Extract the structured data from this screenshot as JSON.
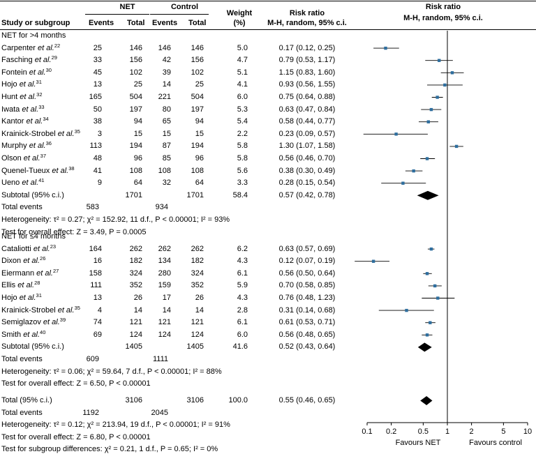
{
  "header": {
    "study": "Study or subgroup",
    "net": "NET",
    "control": "Control",
    "events": "Events",
    "total": "Total",
    "weight": "Weight",
    "weight_unit": "(%)",
    "rr_title": "Risk ratio",
    "rr_sub": "M-H, random, 95% c.i.",
    "plot_title": "Risk ratio",
    "plot_sub": "M-H, random, 95% c.i."
  },
  "groups": [
    {
      "title": "NET for >4 months",
      "studies": [
        {
          "name": "Carpenter",
          "ref": "22",
          "ne": "25",
          "nt": "146",
          "ce": "146",
          "ct": "146",
          "w": "5.0",
          "rr": "0.17 (0.12, 0.25)"
        },
        {
          "name": "Fasching",
          "ref": "29",
          "ne": "33",
          "nt": "156",
          "ce": "42",
          "ct": "156",
          "w": "4.7",
          "rr": "0.79 (0.53, 1.17)"
        },
        {
          "name": "Fontein",
          "ref": "30",
          "ne": "45",
          "nt": "102",
          "ce": "39",
          "ct": "102",
          "w": "5.1",
          "rr": "1.15 (0.83, 1.60)"
        },
        {
          "name": "Hojo",
          "ref": "31",
          "ne": "13",
          "nt": "25",
          "ce": "14",
          "ct": "25",
          "w": "4.1",
          "rr": "0.93 (0.56, 1.55)"
        },
        {
          "name": "Hunt",
          "ref": "32",
          "ne": "165",
          "nt": "504",
          "ce": "221",
          "ct": "504",
          "w": "6.0",
          "rr": "0.75 (0.64, 0.88)"
        },
        {
          "name": "Iwata",
          "ref": "33",
          "ne": "50",
          "nt": "197",
          "ce": "80",
          "ct": "197",
          "w": "5.3",
          "rr": "0.63 (0.47, 0.84)"
        },
        {
          "name": "Kantor",
          "ref": "34",
          "ne": "38",
          "nt": "94",
          "ce": "65",
          "ct": "94",
          "w": "5.4",
          "rr": "0.58 (0.44, 0.77)"
        },
        {
          "name": "Krainick-Strobel",
          "ref": "35",
          "ne": "3",
          "nt": "15",
          "ce": "15",
          "ct": "15",
          "w": "2.2",
          "rr": "0.23 (0.09, 0.57)"
        },
        {
          "name": "Murphy",
          "ref": "36",
          "ne": "113",
          "nt": "194",
          "ce": "87",
          "ct": "194",
          "w": "5.8",
          "rr": "1.30 (1.07, 1.58)"
        },
        {
          "name": "Olson",
          "ref": "37",
          "ne": "48",
          "nt": "96",
          "ce": "85",
          "ct": "96",
          "w": "5.8",
          "rr": "0.56 (0.46, 0.70)"
        },
        {
          "name": "Quenel-Tueux",
          "ref": "38",
          "ne": "41",
          "nt": "108",
          "ce": "108",
          "ct": "108",
          "w": "5.6",
          "rr": "0.38 (0.30, 0.49)"
        },
        {
          "name": "Ueno",
          "ref": "41",
          "ne": "9",
          "nt": "64",
          "ce": "32",
          "ct": "64",
          "w": "3.3",
          "rr": "0.28 (0.15, 0.54)"
        }
      ],
      "subtotal": {
        "label": "Subtotal (95% c.i.)",
        "nt": "1701",
        "ct": "1701",
        "w": "58.4",
        "rr": "0.57 (0.42, 0.78)"
      },
      "events": {
        "label": "Total events",
        "ne": "583",
        "ce": "934"
      },
      "heterogeneity": "Heterogeneity: τ² = 0.27; χ² = 152.92, 11 d.f., P < 0.00001; I² = 93%",
      "overall": "Test for overall effect: Z = 3.49, P = 0.0005"
    },
    {
      "title": "NET for ≤4 months",
      "studies": [
        {
          "name": "Cataliotti",
          "ref": "23",
          "ne": "164",
          "nt": "262",
          "ce": "262",
          "ct": "262",
          "w": "6.2",
          "rr": "0.63 (0.57, 0.69)"
        },
        {
          "name": "Dixon",
          "ref": "26",
          "ne": "16",
          "nt": "182",
          "ce": "134",
          "ct": "182",
          "w": "4.3",
          "rr": "0.12 (0.07, 0.19)"
        },
        {
          "name": "Eiermann",
          "ref": "27",
          "ne": "158",
          "nt": "324",
          "ce": "280",
          "ct": "324",
          "w": "6.1",
          "rr": "0.56 (0.50, 0.64)"
        },
        {
          "name": "Ellis",
          "ref": "28",
          "ne": "111",
          "nt": "352",
          "ce": "159",
          "ct": "352",
          "w": "5.9",
          "rr": "0.70 (0.58, 0.85)"
        },
        {
          "name": "Hojo",
          "ref": "31",
          "ne": "13",
          "nt": "26",
          "ce": "17",
          "ct": "26",
          "w": "4.3",
          "rr": "0.76 (0.48, 1.23)"
        },
        {
          "name": "Krainick-Strobel",
          "ref": "35",
          "ne": "4",
          "nt": "14",
          "ce": "14",
          "ct": "14",
          "w": "2.8",
          "rr": "0.31 (0.14, 0.68)"
        },
        {
          "name": "Semiglazov",
          "ref": "39",
          "ne": "74",
          "nt": "121",
          "ce": "121",
          "ct": "121",
          "w": "6.1",
          "rr": "0.61 (0.53, 0.71)"
        },
        {
          "name": "Smith",
          "ref": "40",
          "ne": "69",
          "nt": "124",
          "ce": "124",
          "ct": "124",
          "w": "6.0",
          "rr": "0.56 (0.48, 0.65)"
        }
      ],
      "subtotal": {
        "label": "Subtotal (95% c.i.)",
        "nt": "1405",
        "ct": "1405",
        "w": "41.6",
        "rr": "0.52 (0.43, 0.64)"
      },
      "events": {
        "label": "Total events",
        "ne": "609",
        "ce": "1111"
      },
      "heterogeneity": "Heterogeneity: τ² = 0.06; χ² = 59.64, 7 d.f., P < 0.00001; I² = 88%",
      "overall": "Test for overall effect: Z = 6.50, P < 0.00001"
    }
  ],
  "total": {
    "label": "Total (95% c.i.)",
    "nt": "3106",
    "ct": "3106",
    "w": "100.0",
    "rr": "0.55 (0.46, 0.65)"
  },
  "total_events": {
    "label": "Total events",
    "ne": "1192",
    "ce": "2045"
  },
  "total_heterogeneity": "Heterogeneity: τ² = 0.12; χ² = 213.94, 19 d.f., P < 0.00001; I² = 91%",
  "total_overall": "Test for overall effect: Z = 6.80, P < 0.00001",
  "subgroup_diff": "Test for subgroup differences: χ² = 0.21, 1 d.f., P = 0.65; I² = 0%",
  "et_al": "et al.",
  "chart_data": {
    "type": "forest",
    "title": "Risk ratio",
    "subtitle": "M-H, random, 95% c.i.",
    "scale": "log",
    "xlim": [
      0.1,
      10
    ],
    "ticks": [
      0.1,
      0.2,
      0.5,
      1,
      2,
      5,
      10
    ],
    "tick_labels": [
      "0.1",
      "0.2",
      "0.5",
      "1",
      "2",
      "5",
      "10"
    ],
    "reference_line": 1,
    "xlabel_left": "Favours NET",
    "xlabel_right": "Favours control",
    "colors": {
      "point": "#2e6e9e",
      "line": "#000000",
      "diamond": "#000000"
    },
    "studies_group1": [
      {
        "rr": 0.17,
        "lo": 0.12,
        "hi": 0.25
      },
      {
        "rr": 0.79,
        "lo": 0.53,
        "hi": 1.17
      },
      {
        "rr": 1.15,
        "lo": 0.83,
        "hi": 1.6
      },
      {
        "rr": 0.93,
        "lo": 0.56,
        "hi": 1.55
      },
      {
        "rr": 0.75,
        "lo": 0.64,
        "hi": 0.88
      },
      {
        "rr": 0.63,
        "lo": 0.47,
        "hi": 0.84
      },
      {
        "rr": 0.58,
        "lo": 0.44,
        "hi": 0.77
      },
      {
        "rr": 0.23,
        "lo": 0.09,
        "hi": 0.57
      },
      {
        "rr": 1.3,
        "lo": 1.07,
        "hi": 1.58
      },
      {
        "rr": 0.56,
        "lo": 0.46,
        "hi": 0.7
      },
      {
        "rr": 0.38,
        "lo": 0.3,
        "hi": 0.49
      },
      {
        "rr": 0.28,
        "lo": 0.15,
        "hi": 0.54
      }
    ],
    "subtotal_group1": {
      "rr": 0.57,
      "lo": 0.42,
      "hi": 0.78
    },
    "studies_group2": [
      {
        "rr": 0.63,
        "lo": 0.57,
        "hi": 0.69
      },
      {
        "rr": 0.12,
        "lo": 0.07,
        "hi": 0.19
      },
      {
        "rr": 0.56,
        "lo": 0.5,
        "hi": 0.64
      },
      {
        "rr": 0.7,
        "lo": 0.58,
        "hi": 0.85
      },
      {
        "rr": 0.76,
        "lo": 0.48,
        "hi": 1.23
      },
      {
        "rr": 0.31,
        "lo": 0.14,
        "hi": 0.68
      },
      {
        "rr": 0.61,
        "lo": 0.53,
        "hi": 0.71
      },
      {
        "rr": 0.56,
        "lo": 0.48,
        "hi": 0.65
      }
    ],
    "subtotal_group2": {
      "rr": 0.52,
      "lo": 0.43,
      "hi": 0.64
    },
    "total": {
      "rr": 0.55,
      "lo": 0.46,
      "hi": 0.65
    }
  }
}
